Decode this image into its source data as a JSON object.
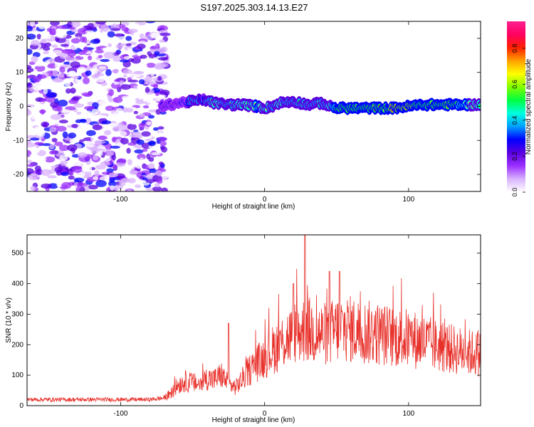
{
  "title": "S197.2025.303.14.13.E27",
  "chart_data": [
    {
      "type": "heatmap",
      "title": "S197.2025.303.14.13.E27",
      "xlabel": "Height of straight line (km)",
      "ylabel": "Frequency (Hz)",
      "xlim": [
        -165,
        150
      ],
      "ylim": [
        -25,
        25
      ],
      "x_ticks": [
        -100,
        0,
        100
      ],
      "y_ticks": [
        -20,
        -10,
        0,
        10,
        20
      ],
      "noise_region_x": [
        -165,
        -68
      ],
      "ridge": {
        "x": [
          -72,
          -60,
          -50,
          -42,
          -35,
          -25,
          -15,
          -5,
          0,
          5,
          10,
          20,
          30,
          40,
          45,
          50,
          60,
          70,
          80,
          90,
          100,
          110,
          120,
          130,
          140,
          150
        ],
        "y": [
          0,
          1,
          1.5,
          2,
          1,
          0.5,
          0.5,
          0,
          -0.5,
          0,
          1,
          1.5,
          0.5,
          1,
          0,
          -0.5,
          -0.5,
          -0.5,
          -0.5,
          -0.5,
          0,
          0.5,
          0.5,
          0.5,
          0.5,
          0.5
        ],
        "amplitude": [
          0.3,
          0.35,
          0.5,
          0.45,
          0.6,
          0.55,
          0.6,
          0.65,
          0.6,
          0.55,
          0.6,
          0.5,
          0.55,
          0.5,
          0.6,
          0.7,
          0.75,
          0.7,
          0.75,
          0.8,
          0.8,
          0.75,
          0.7,
          0.7,
          0.65,
          0.6
        ]
      },
      "colorbar": {
        "label": "Normalized spectral amplitude",
        "range": [
          0,
          0.95
        ],
        "ticks": [
          0.0,
          0.2,
          0.4,
          0.6,
          0.8
        ],
        "tick_labels": [
          "0.0",
          "0.2",
          "0.4",
          "0.6",
          "0.8"
        ],
        "colors": [
          "#ffffff",
          "#d9b3ff",
          "#9b30ff",
          "#5a00e0",
          "#0000ff",
          "#00a0ff",
          "#00ffe0",
          "#00ff40",
          "#80ff00",
          "#ffff00",
          "#ffa000",
          "#ff2000",
          "#ff0060",
          "#ff2090"
        ]
      }
    },
    {
      "type": "line",
      "xlabel": "Height of straight line (km)",
      "ylabel": "SNR (10 * v/v)",
      "xlim": [
        -165,
        150
      ],
      "ylim": [
        0,
        560
      ],
      "x_ticks": [
        -100,
        0,
        100
      ],
      "y_ticks": [
        0,
        100,
        200,
        300,
        400,
        500
      ],
      "line_color": "#e8302a",
      "series": [
        {
          "name": "SNR",
          "x": [
            -165,
            -140,
            -120,
            -100,
            -80,
            -70,
            -65,
            -60,
            -55,
            -50,
            -45,
            -40,
            -35,
            -30,
            -25,
            -20,
            -15,
            -10,
            -5,
            0,
            5,
            10,
            15,
            20,
            25,
            30,
            35,
            40,
            45,
            50,
            55,
            60,
            70,
            80,
            90,
            100,
            110,
            120,
            130,
            140,
            150
          ],
          "baseline": [
            20,
            20,
            20,
            20,
            20,
            25,
            40,
            70,
            80,
            75,
            70,
            90,
            85,
            100,
            70,
            60,
            90,
            120,
            140,
            160,
            180,
            200,
            220,
            235,
            245,
            250,
            240,
            235,
            235,
            250,
            255,
            250,
            240,
            235,
            225,
            220,
            210,
            195,
            185,
            175,
            170
          ],
          "spikes_x": [
            -25,
            28,
            45,
            52,
            20
          ],
          "spikes_y": [
            270,
            560,
            440,
            440,
            400
          ]
        }
      ]
    }
  ]
}
